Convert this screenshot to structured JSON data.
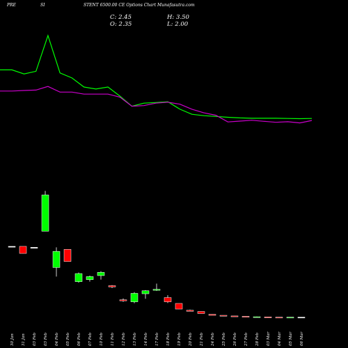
{
  "header": {
    "symbol_left": "PRE",
    "symbol_mid": "SI",
    "title": "STENT 6500.00 CE Options Chart Munafasutra.com"
  },
  "ohlc": {
    "close": "C: 2.45",
    "high": "H: 3.50",
    "open": "O: 2.35",
    "low": "L: 2.00"
  },
  "chart_data": {
    "type": "candlestick",
    "categories": [
      "30 Jan",
      "31 Jan",
      "03 Feb",
      "03 Feb",
      "04 Feb",
      "05 Feb",
      "06 Feb",
      "07 Feb",
      "10 Feb",
      "11 Feb",
      "12 Feb",
      "13 Feb",
      "14 Feb",
      "17 Feb",
      "18 Feb",
      "19 Feb",
      "20 Feb",
      "21 Feb",
      "24 Feb",
      "25 Feb",
      "26 Feb",
      "27 Feb",
      "28 Feb",
      "03 Mar",
      "04 Mar",
      "05 Mar",
      "06 Mar"
    ],
    "x_labels": [
      "30 Jan",
      "31 Jan",
      "03 Feb",
      "03 Feb",
      "04 Feb",
      "05 Feb",
      "06 Feb",
      "07 Feb",
      "10 Feb",
      "11 Feb",
      "12 Feb",
      "13 Feb",
      "14 Feb",
      "17 Feb",
      "18 Feb",
      "19 Feb",
      "20 Feb",
      "21 Feb",
      "24 Feb",
      "25 Feb",
      "26 Feb",
      "27 Feb",
      "28 Feb",
      "03 Mar",
      "04 Mar",
      "05 Mar",
      "06 Mar"
    ],
    "candles": [
      {
        "o": 305,
        "h": 305,
        "l": 305,
        "c": 305,
        "color": "#ffffff"
      },
      {
        "o": 305,
        "h": 305,
        "l": 270,
        "c": 270,
        "color": "#ff0000"
      },
      {
        "o": 300,
        "h": 300,
        "l": 298,
        "c": 300,
        "color": "#ffffff"
      },
      {
        "o": 380,
        "h": 580,
        "l": 380,
        "c": 560,
        "color": "#00ff00"
      },
      {
        "o": 200,
        "h": 300,
        "l": 155,
        "c": 280,
        "color": "#00ff00"
      },
      {
        "o": 290,
        "h": 290,
        "l": 230,
        "c": 230,
        "color": "#ff0000"
      },
      {
        "o": 130,
        "h": 175,
        "l": 125,
        "c": 170,
        "color": "#00ff00"
      },
      {
        "o": 140,
        "h": 160,
        "l": 130,
        "c": 155,
        "color": "#00ff00"
      },
      {
        "o": 160,
        "h": 182,
        "l": 140,
        "c": 176,
        "color": "#00ff00"
      },
      {
        "o": 110,
        "h": 113,
        "l": 98,
        "c": 104,
        "color": "#ff0000"
      },
      {
        "o": 40,
        "h": 47,
        "l": 30,
        "c": 35,
        "color": "#ff0000"
      },
      {
        "o": 30,
        "h": 78,
        "l": 23,
        "c": 72,
        "color": "#00ff00"
      },
      {
        "o": 70,
        "h": 88,
        "l": 45,
        "c": 85,
        "color": "#00ff00"
      },
      {
        "o": 87,
        "h": 120,
        "l": 84,
        "c": 92,
        "color": "#00ff00"
      },
      {
        "o": 51,
        "h": 63,
        "l": 24,
        "c": 30,
        "color": "#ff0000"
      },
      {
        "o": 22,
        "h": 22,
        "l": -6,
        "c": -6,
        "color": "#ff0000"
      },
      {
        "o": -12,
        "h": -9,
        "l": -18,
        "c": -17,
        "color": "#ff0000"
      },
      {
        "o": -18,
        "h": -18,
        "l": -28,
        "c": -28,
        "color": "#ff0000"
      },
      {
        "o": -32,
        "h": -32,
        "l": -37,
        "c": -37,
        "color": "#ff0000"
      },
      {
        "o": -37,
        "h": -37,
        "l": -40,
        "c": -40,
        "color": "#ff0000"
      },
      {
        "o": -40,
        "h": -40,
        "l": -43,
        "c": -43,
        "color": "#ff0000"
      },
      {
        "o": -42,
        "h": -42,
        "l": -44,
        "c": -44,
        "color": "#ff0000"
      },
      {
        "o": -44,
        "h": -43,
        "l": -47,
        "c": -45,
        "color": "#00ff00"
      },
      {
        "o": -45,
        "h": -45,
        "l": -47,
        "c": -47,
        "color": "#ff0000"
      },
      {
        "o": -46,
        "h": -46,
        "l": -48,
        "c": -48,
        "color": "#ff0000"
      },
      {
        "o": -47,
        "h": -46,
        "l": -48,
        "c": -46,
        "color": "#00ff00"
      },
      {
        "o": -47,
        "h": -46,
        "l": -48,
        "c": -46,
        "color": "#ffffff"
      }
    ],
    "series": [
      {
        "color": "#00ff00",
        "values": [
          1180,
          1180,
          1160,
          1173,
          1350,
          1165,
          1140,
          1095,
          1085,
          1095,
          1050,
          1000,
          1015,
          1018,
          1022,
          985,
          960,
          953,
          949,
          945,
          942,
          940,
          940,
          940,
          939,
          938,
          939
        ]
      },
      {
        "color": "#cc00cc",
        "values": [
          1075,
          1075,
          1078,
          1080,
          1098,
          1070,
          1070,
          1060,
          1060,
          1060,
          1045,
          1000,
          1003,
          1015,
          1020,
          1010,
          985,
          967,
          955,
          922,
          926,
          930,
          925,
          920,
          923,
          917,
          929
        ]
      }
    ],
    "ylim": [
      -61,
      1492
    ],
    "grid": false,
    "legend": "none",
    "colors": {
      "background": "#000000",
      "up": "#00ff00",
      "down": "#ff0000",
      "doji": "#ffffff",
      "ma1": "#00ff00",
      "ma2": "#cc00cc"
    }
  }
}
